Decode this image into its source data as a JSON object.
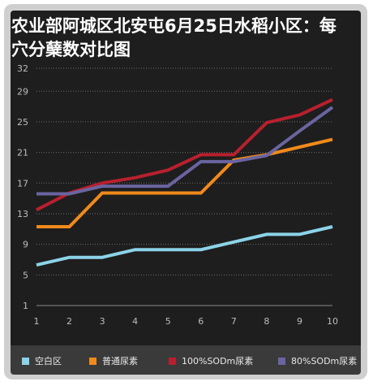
{
  "chart_data": {
    "type": "line",
    "title": "农业部阿城区北安屯6月25日水稻小区：每\n穴分蘖数对比图",
    "x": [
      1,
      2,
      3,
      4,
      5,
      6,
      7,
      8,
      9,
      10
    ],
    "y_ticks": [
      1,
      5,
      9,
      13,
      17,
      21,
      25,
      29,
      32
    ],
    "ylim": [
      1,
      32
    ],
    "grid": true,
    "legend_position": "bottom",
    "series": [
      {
        "name": "空白区",
        "color": "#8cd3e8",
        "values": [
          6.3,
          7.3,
          7.3,
          8.3,
          8.3,
          8.3,
          9.3,
          10.3,
          10.3,
          11.3
        ]
      },
      {
        "name": "普通尿素",
        "color": "#f08a1c",
        "values": [
          11.3,
          11.3,
          15.7,
          15.7,
          15.7,
          15.7,
          20,
          20.7,
          21.7,
          22.7
        ]
      },
      {
        "name": "100%SODm尿素",
        "color": "#b8202e",
        "values": [
          13.5,
          15.7,
          17,
          17.7,
          18.7,
          20.7,
          20.7,
          24.9,
          25.9,
          27.9
        ]
      },
      {
        "name": "80%SODm尿素",
        "color": "#6a64a0",
        "values": [
          15.6,
          15.6,
          16.6,
          16.6,
          16.6,
          19.8,
          19.8,
          20.6,
          23.8,
          26.9
        ]
      }
    ]
  }
}
